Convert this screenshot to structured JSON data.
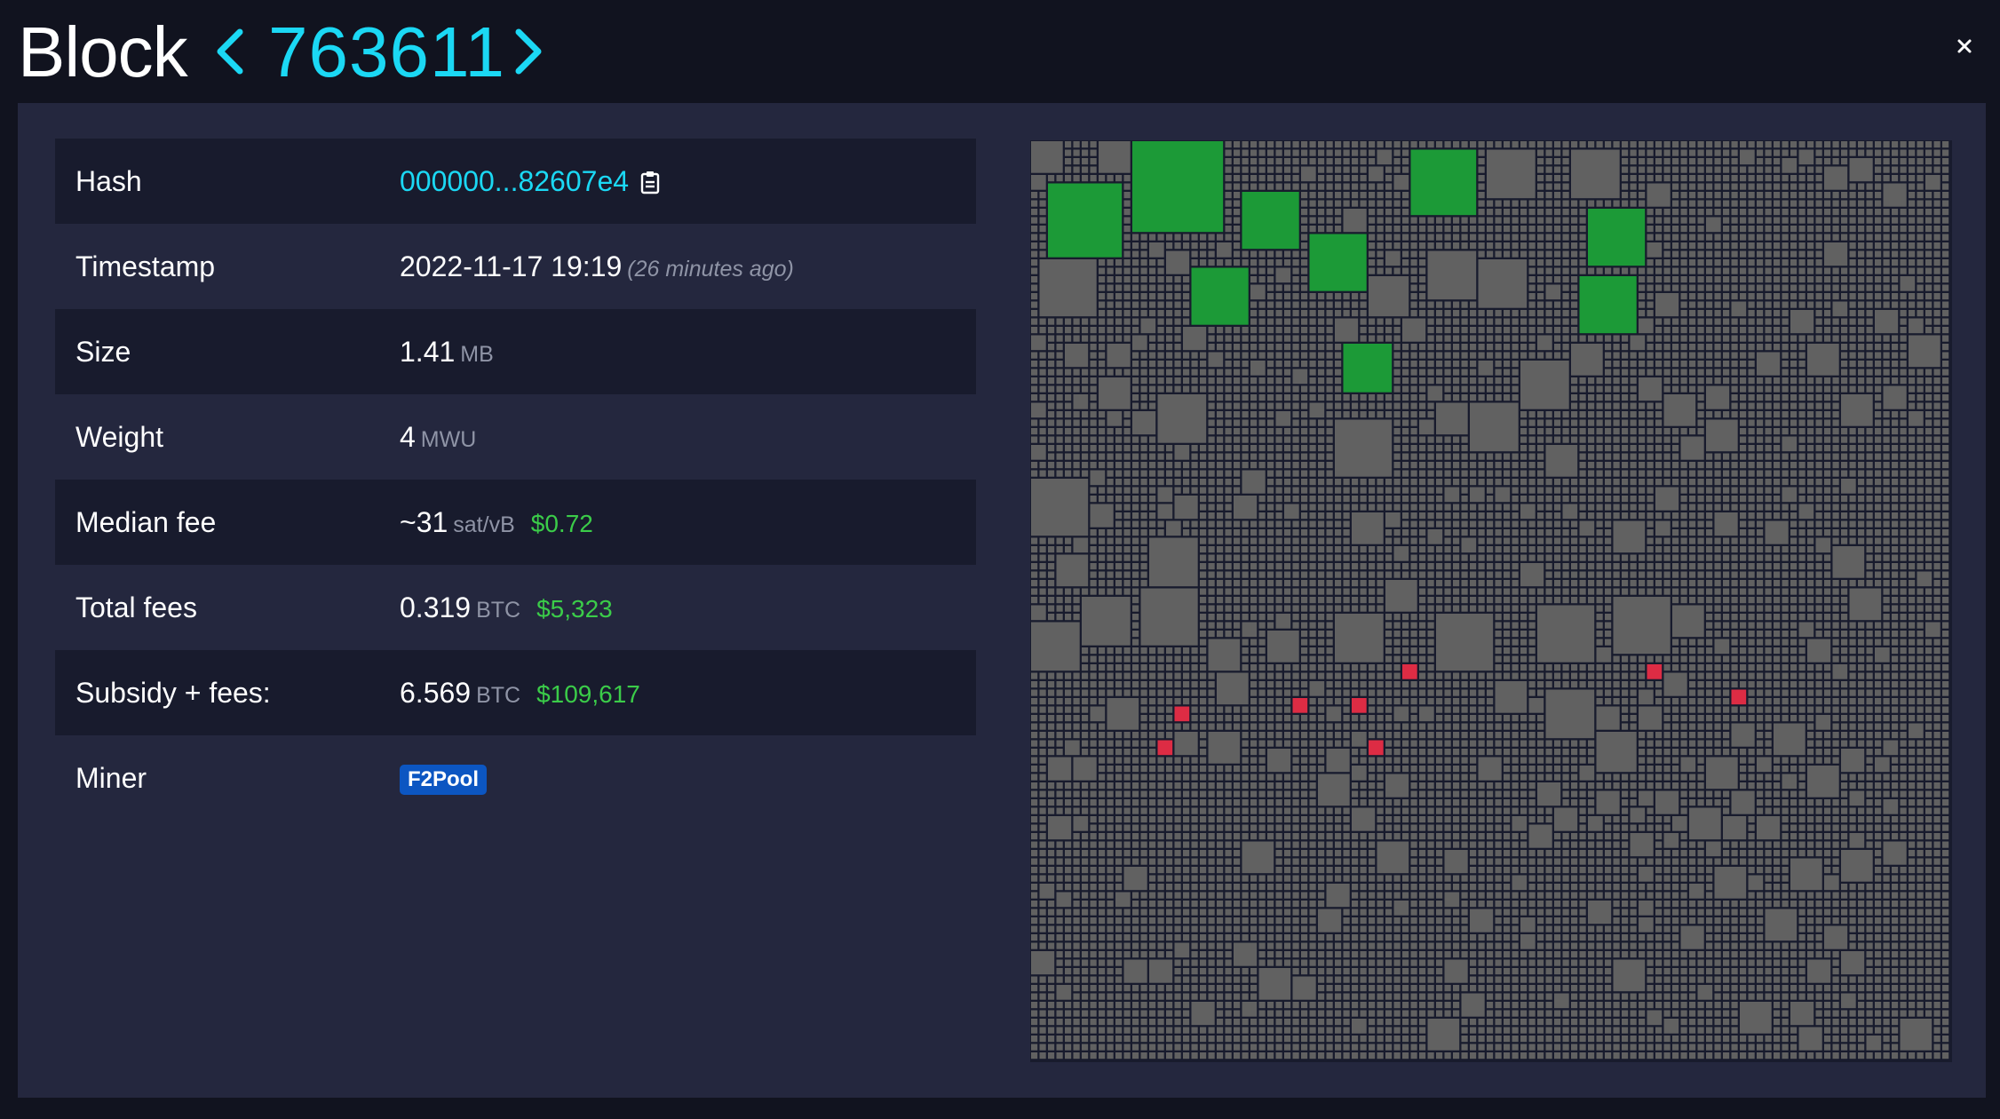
{
  "header": {
    "title": "Block",
    "block_height": "763611",
    "prev_icon": "chevron-left-icon",
    "next_icon": "chevron-right-icon",
    "close_icon": "close-icon"
  },
  "details": {
    "hash": {
      "label": "Hash",
      "value": "000000...82607e4",
      "copy_icon": "clipboard-icon"
    },
    "timestamp": {
      "label": "Timestamp",
      "value": "2022-11-17 19:19",
      "relative": "(26 minutes ago)"
    },
    "size": {
      "label": "Size",
      "value": "1.41",
      "unit": "MB"
    },
    "weight": {
      "label": "Weight",
      "value": "4",
      "unit": "MWU"
    },
    "median_fee": {
      "label": "Median fee",
      "value": "~31",
      "unit": "sat/vB",
      "fiat": "$0.72"
    },
    "total_fees": {
      "label": "Total fees",
      "value": "0.319",
      "unit": "BTC",
      "fiat": "$5,323"
    },
    "subsidy_fees": {
      "label": "Subsidy + fees:",
      "value": "6.569",
      "unit": "BTC",
      "fiat": "$109,617"
    },
    "miner": {
      "label": "Miner",
      "value": "F2Pool"
    }
  },
  "colors": {
    "accent": "#1bd8f4",
    "fiat": "#3bcc49",
    "tx_default": "#616161",
    "tx_highlight_green": "#1c9a37",
    "tx_highlight_red": "#dd2c44",
    "panel": "#24273e",
    "background": "#11131f",
    "miner_badge": "#0c56c2"
  }
}
